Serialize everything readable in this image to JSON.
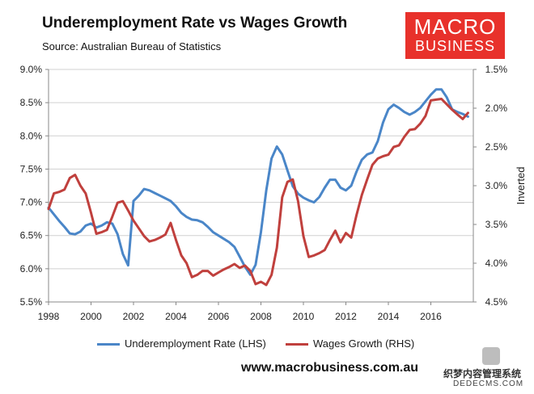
{
  "title": "Underemployment Rate vs Wages Growth",
  "source": "Source: Australian Bureau of Statistics",
  "logo": {
    "line1": "MACRO",
    "line2": "BUSINESS"
  },
  "website": "www.macrobusiness.com.au",
  "stamp": {
    "line1": "织梦内容管理系统",
    "line2": "DEDECMS.COM"
  },
  "colors": {
    "underemployment": "#4a86c8",
    "wages": "#c0403d",
    "brand": "#e8312b",
    "grid": "#d0d0d0"
  },
  "chart_data": {
    "type": "line",
    "title": "Underemployment Rate vs Wages Growth",
    "xlim": [
      1998,
      2018
    ],
    "x_ticks": [
      "1998",
      "2000",
      "2002",
      "2004",
      "2006",
      "2008",
      "2010",
      "2012",
      "2014",
      "2016"
    ],
    "ylim_left": [
      5.5,
      9.0
    ],
    "y_ticks_left": [
      "9.0%",
      "8.5%",
      "8.0%",
      "7.5%",
      "7.0%",
      "6.5%",
      "6.0%",
      "5.5%"
    ],
    "ylim_right": [
      1.5,
      4.5
    ],
    "right_axis_inverted": true,
    "y_ticks_right": [
      "1.5%",
      "2.0%",
      "2.5%",
      "3.0%",
      "3.5%",
      "4.0%",
      "4.5%"
    ],
    "ylabel_right": "Inverted",
    "grid": "horizontal",
    "legend_position": "bottom",
    "series": [
      {
        "name": "Underemployment Rate (LHS)",
        "axis": "left",
        "x": [
          1998.0,
          1998.25,
          1998.5,
          1998.75,
          1999.0,
          1999.25,
          1999.5,
          1999.75,
          2000.0,
          2000.25,
          2000.5,
          2000.75,
          2001.0,
          2001.25,
          2001.5,
          2001.75,
          2002.0,
          2002.25,
          2002.5,
          2002.75,
          2003.0,
          2003.25,
          2003.5,
          2003.75,
          2004.0,
          2004.25,
          2004.5,
          2004.75,
          2005.0,
          2005.25,
          2005.5,
          2005.75,
          2006.0,
          2006.25,
          2006.5,
          2006.75,
          2007.0,
          2007.25,
          2007.5,
          2007.75,
          2008.0,
          2008.25,
          2008.5,
          2008.75,
          2009.0,
          2009.25,
          2009.5,
          2009.75,
          2010.0,
          2010.25,
          2010.5,
          2010.75,
          2011.0,
          2011.25,
          2011.5,
          2011.75,
          2012.0,
          2012.25,
          2012.5,
          2012.75,
          2013.0,
          2013.25,
          2013.5,
          2013.75,
          2014.0,
          2014.25,
          2014.5,
          2014.75,
          2015.0,
          2015.25,
          2015.5,
          2015.75,
          2016.0,
          2016.25,
          2016.5,
          2016.75,
          2017.0,
          2017.25,
          2017.5,
          2017.75
        ],
        "values": [
          6.92,
          6.82,
          6.72,
          6.63,
          6.53,
          6.52,
          6.56,
          6.65,
          6.68,
          6.62,
          6.65,
          6.7,
          6.68,
          6.52,
          6.22,
          6.05,
          7.02,
          7.1,
          7.2,
          7.18,
          7.14,
          7.1,
          7.06,
          7.02,
          6.94,
          6.84,
          6.78,
          6.74,
          6.73,
          6.7,
          6.63,
          6.55,
          6.5,
          6.45,
          6.4,
          6.33,
          6.18,
          6.03,
          5.91,
          6.06,
          6.55,
          7.18,
          7.66,
          7.84,
          7.72,
          7.48,
          7.24,
          7.13,
          7.07,
          7.03,
          7.0,
          7.08,
          7.22,
          7.34,
          7.34,
          7.22,
          7.18,
          7.25,
          7.46,
          7.64,
          7.72,
          7.75,
          7.92,
          8.2,
          8.4,
          8.47,
          8.42,
          8.36,
          8.32,
          8.36,
          8.42,
          8.52,
          8.62,
          8.7,
          8.7,
          8.58,
          8.4,
          8.36,
          8.33,
          8.29
        ]
      },
      {
        "name": "Wages Growth (RHS)",
        "axis": "right",
        "x": [
          1998.0,
          1998.25,
          1998.5,
          1998.75,
          1999.0,
          1999.25,
          1999.5,
          1999.75,
          2000.0,
          2000.25,
          2000.5,
          2000.75,
          2001.0,
          2001.25,
          2001.5,
          2001.75,
          2002.0,
          2002.25,
          2002.5,
          2002.75,
          2003.0,
          2003.25,
          2003.5,
          2003.75,
          2004.0,
          2004.25,
          2004.5,
          2004.75,
          2005.0,
          2005.25,
          2005.5,
          2005.75,
          2006.0,
          2006.25,
          2006.5,
          2006.75,
          2007.0,
          2007.25,
          2007.5,
          2007.75,
          2008.0,
          2008.25,
          2008.5,
          2008.75,
          2009.0,
          2009.25,
          2009.5,
          2009.75,
          2010.0,
          2010.25,
          2010.5,
          2010.75,
          2011.0,
          2011.25,
          2011.5,
          2011.75,
          2012.0,
          2012.25,
          2012.5,
          2012.75,
          2013.0,
          2013.25,
          2013.5,
          2013.75,
          2014.0,
          2014.25,
          2014.5,
          2014.75,
          2015.0,
          2015.25,
          2015.5,
          2015.75,
          2016.0,
          2016.25,
          2016.5,
          2016.75,
          2017.0,
          2017.25,
          2017.5,
          2017.75
        ],
        "values": [
          3.3,
          3.1,
          3.08,
          3.05,
          2.9,
          2.86,
          3.0,
          3.1,
          3.35,
          3.62,
          3.6,
          3.57,
          3.4,
          3.22,
          3.2,
          3.32,
          3.45,
          3.55,
          3.65,
          3.72,
          3.7,
          3.67,
          3.63,
          3.48,
          3.7,
          3.9,
          4.0,
          4.18,
          4.15,
          4.1,
          4.1,
          4.16,
          4.12,
          4.08,
          4.05,
          4.01,
          4.06,
          4.03,
          4.1,
          4.27,
          4.24,
          4.28,
          4.15,
          3.8,
          3.15,
          2.95,
          2.92,
          3.2,
          3.65,
          3.92,
          3.9,
          3.87,
          3.83,
          3.7,
          3.58,
          3.73,
          3.61,
          3.67,
          3.38,
          3.12,
          2.92,
          2.73,
          2.65,
          2.62,
          2.6,
          2.5,
          2.48,
          2.37,
          2.28,
          2.27,
          2.2,
          2.1,
          1.9,
          1.89,
          1.88,
          1.95,
          2.02,
          2.08,
          2.14,
          2.06
        ]
      }
    ]
  }
}
